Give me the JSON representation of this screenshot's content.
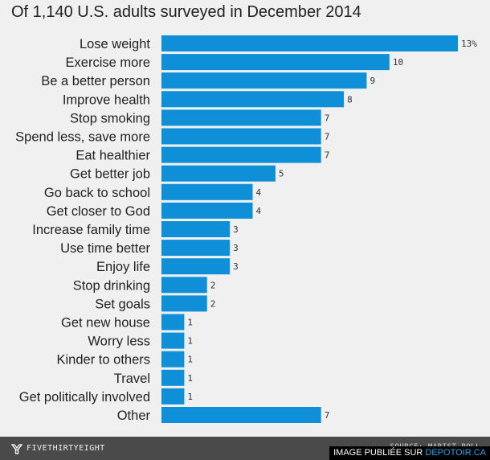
{
  "chart_data": {
    "type": "bar",
    "orientation": "horizontal",
    "title": "Of 1,140 U.S. adults surveyed in December 2014",
    "categories": [
      "Lose weight",
      "Exercise more",
      "Be a better person",
      "Improve health",
      "Stop smoking",
      "Spend less, save more",
      "Eat healthier",
      "Get better job",
      "Go back to school",
      "Get closer to God",
      "Increase family time",
      "Use time better",
      "Enjoy life",
      "Stop drinking",
      "Set goals",
      "Get new house",
      "Worry less",
      "Kinder to others",
      "Travel",
      "Get politically involved",
      "Other"
    ],
    "values": [
      13,
      10,
      9,
      8,
      7,
      7,
      7,
      5,
      4,
      4,
      3,
      3,
      3,
      2,
      2,
      1,
      1,
      1,
      1,
      1,
      7
    ],
    "value_labels": [
      "13%",
      "10",
      "9",
      "8",
      "7",
      "7",
      "7",
      "5",
      "4",
      "4",
      "3",
      "3",
      "3",
      "2",
      "2",
      "1",
      "1",
      "1",
      "1",
      "1",
      "7"
    ],
    "unit": "%",
    "xlim": [
      0,
      13
    ],
    "grid": false,
    "bar_color": "#0f8fd7"
  },
  "footer": {
    "brand": "FIVETHIRTYEIGHT",
    "brand_icon": "fivethirtyeight-logo-icon",
    "source": "SOURCE: MARIST POLL"
  },
  "watermark": {
    "prefix": "IMAGE PUBLIÉE SUR ",
    "site": "DEPOTOIR.CA",
    "site_color": "#29a3e8"
  }
}
